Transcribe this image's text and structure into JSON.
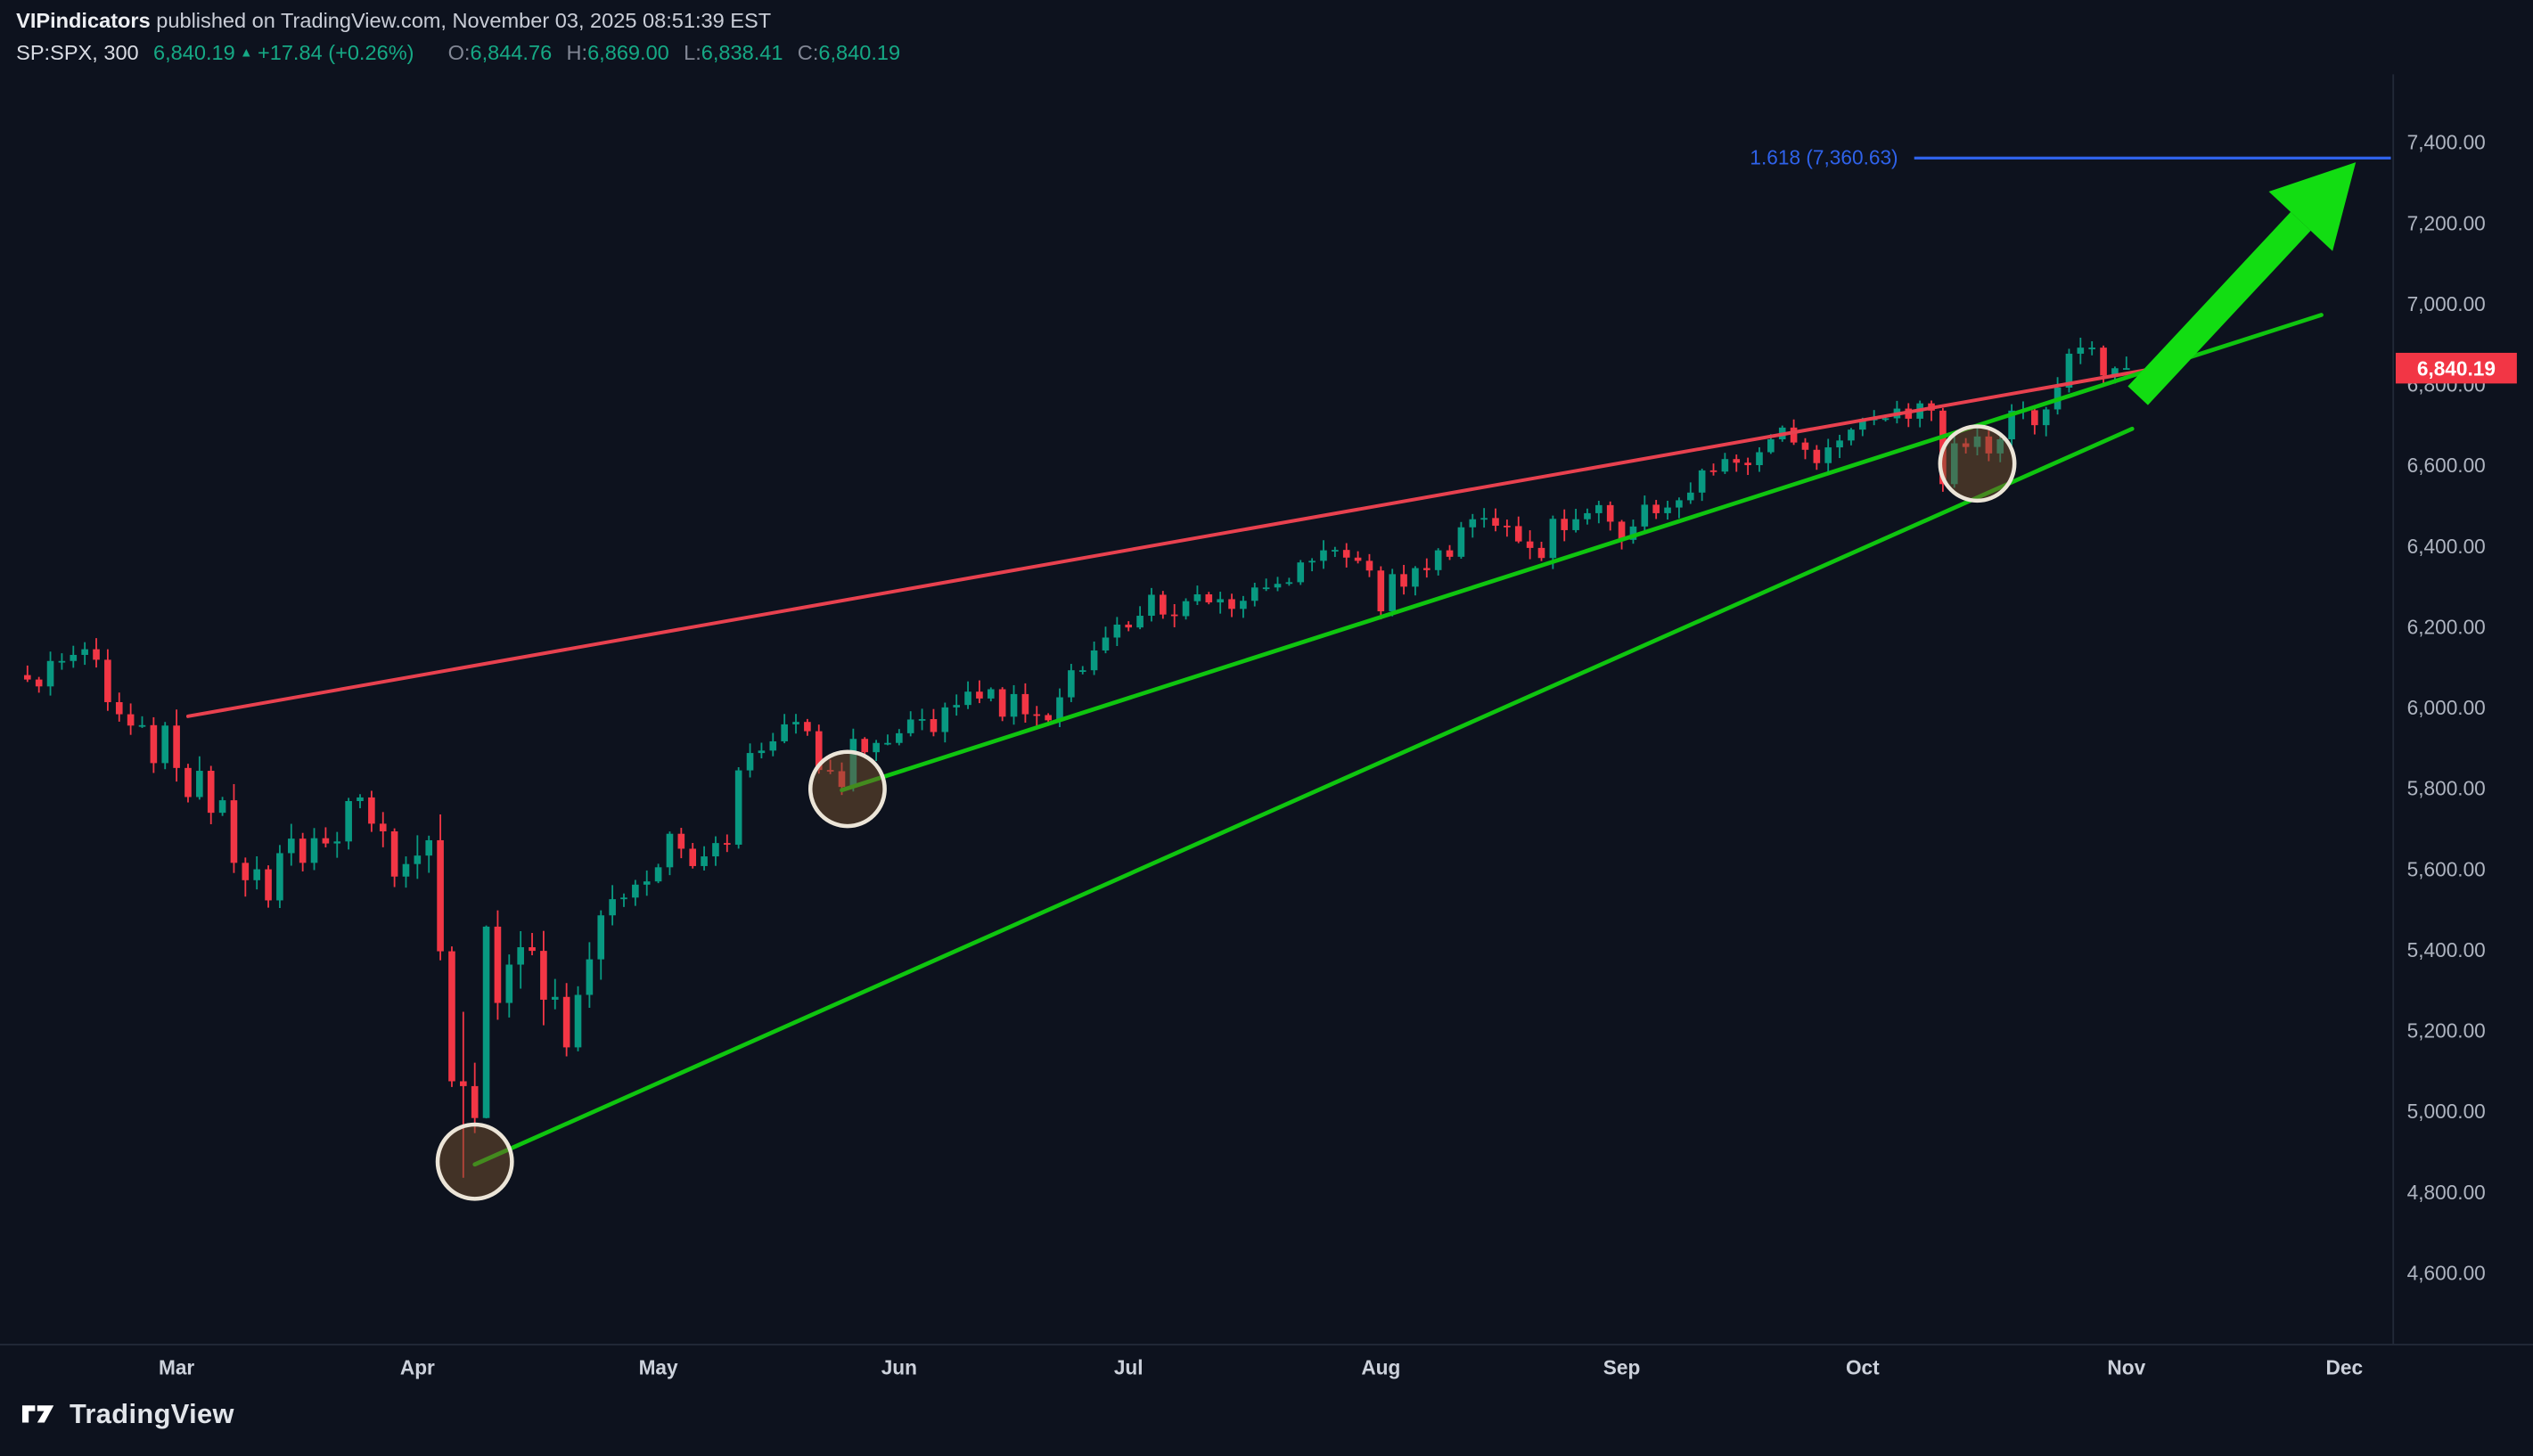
{
  "page": {
    "attribution": {
      "author": "VIPindicators",
      "suffix": " published on TradingView.com, November 03, 2025 08:51:39 EST"
    },
    "symbol_line": {
      "symbol": "SP:SPX, 300",
      "last_price": "6,840.19",
      "direction_icon": "▲",
      "change": "+17.84 (+0.26%)",
      "ohlc": [
        {
          "label": "O:",
          "value": "6,844.76"
        },
        {
          "label": "H:",
          "value": "6,869.00"
        },
        {
          "label": "L:",
          "value": "6,838.41"
        },
        {
          "label": "C:",
          "value": "6,840.19"
        }
      ]
    },
    "logo_text": "TradingView"
  },
  "chart_data": {
    "type": "candlestick",
    "symbol": "SP:SPX",
    "timeframe": "300",
    "last_price": 6840.19,
    "last_price_label": "6,840.19",
    "y_axis": {
      "ticks": [
        4600,
        4800,
        5000,
        5200,
        5400,
        5600,
        5800,
        6000,
        6200,
        6400,
        6600,
        6800,
        7000,
        7200,
        7400
      ]
    },
    "x_axis": {
      "months": [
        {
          "label": "Mar",
          "day": 13
        },
        {
          "label": "Apr",
          "day": 34
        },
        {
          "label": "May",
          "day": 55
        },
        {
          "label": "Jun",
          "day": 76
        },
        {
          "label": "Jul",
          "day": 96
        },
        {
          "label": "Aug",
          "day": 118
        },
        {
          "label": "Sep",
          "day": 139
        },
        {
          "label": "Oct",
          "day": 160
        },
        {
          "label": "Nov",
          "day": 183
        },
        {
          "label": "Dec",
          "day": 202
        }
      ]
    },
    "candles": [
      [
        "Feb 11",
        6069
      ],
      [
        "Feb 12",
        6052
      ],
      [
        "Feb 13",
        6115
      ],
      [
        "Feb 14",
        6115
      ],
      [
        "Feb 18",
        6130
      ],
      [
        "Feb 19",
        6144
      ],
      [
        "Feb 20",
        6118
      ],
      [
        "Feb 21",
        6013
      ],
      [
        "Feb 24",
        5983
      ],
      [
        "Feb 25",
        5955
      ],
      [
        "Feb 26",
        5956
      ],
      [
        "Feb 27",
        5862
      ],
      [
        "Feb 28",
        5955
      ],
      [
        "Mar 03",
        5850
      ],
      [
        "Mar 04",
        5778
      ],
      [
        "Mar 05",
        5843
      ],
      [
        "Mar 06",
        5739
      ],
      [
        "Mar 07",
        5770
      ],
      [
        "Mar 10",
        5615
      ],
      [
        "Mar 11",
        5572
      ],
      [
        "Mar 12",
        5599
      ],
      [
        "Mar 13",
        5522
      ],
      [
        "Mar 14",
        5639
      ],
      [
        "Mar 17",
        5675
      ],
      [
        "Mar 18",
        5615
      ],
      [
        "Mar 19",
        5676
      ],
      [
        "Mar 20",
        5663
      ],
      [
        "Mar 21",
        5668
      ],
      [
        "Mar 24",
        5768
      ],
      [
        "Mar 25",
        5777
      ],
      [
        "Mar 26",
        5712
      ],
      [
        "Mar 27",
        5693
      ],
      [
        "Mar 28",
        5581
      ],
      [
        "Mar 31",
        5612
      ],
      [
        "Apr 01",
        5633
      ],
      [
        "Apr 02",
        5671
      ],
      [
        "Apr 03",
        5396
      ],
      [
        "Apr 04",
        5074
      ],
      [
        "Apr 07",
        5062
      ],
      [
        "Apr 08",
        4983
      ],
      [
        "Apr 09",
        5457
      ],
      [
        "Apr 10",
        5268
      ],
      [
        "Apr 11",
        5363
      ],
      [
        "Apr 14",
        5406
      ],
      [
        "Apr 15",
        5397
      ],
      [
        "Apr 16",
        5276
      ],
      [
        "Apr 17",
        5283
      ],
      [
        "Apr 21",
        5158
      ],
      [
        "Apr 22",
        5288
      ],
      [
        "Apr 23",
        5376
      ],
      [
        "Apr 24",
        5485
      ],
      [
        "Apr 25",
        5525
      ],
      [
        "Apr 28",
        5529
      ],
      [
        "Apr 29",
        5561
      ],
      [
        "Apr 30",
        5569
      ],
      [
        "May 01",
        5604
      ],
      [
        "May 02",
        5687
      ],
      [
        "May 05",
        5650
      ],
      [
        "May 06",
        5607
      ],
      [
        "May 07",
        5631
      ],
      [
        "May 08",
        5664
      ],
      [
        "May 09",
        5660
      ],
      [
        "May 12",
        5844
      ],
      [
        "May 13",
        5887
      ],
      [
        "May 14",
        5893
      ],
      [
        "May 15",
        5916
      ],
      [
        "May 16",
        5958
      ],
      [
        "May 19",
        5964
      ],
      [
        "May 20",
        5941
      ],
      [
        "May 21",
        5845
      ],
      [
        "May 22",
        5842
      ],
      [
        "May 23",
        5803
      ],
      [
        "May 27",
        5922
      ],
      [
        "May 28",
        5889
      ],
      [
        "May 29",
        5912
      ],
      [
        "May 30",
        5912
      ],
      [
        "Jun 02",
        5936
      ],
      [
        "Jun 03",
        5970
      ],
      [
        "Jun 04",
        5971
      ],
      [
        "Jun 05",
        5939
      ],
      [
        "Jun 06",
        6000
      ],
      [
        "Jun 09",
        6006
      ],
      [
        "Jun 10",
        6039
      ],
      [
        "Jun 11",
        6022
      ],
      [
        "Jun 12",
        6045
      ],
      [
        "Jun 13",
        5977
      ],
      [
        "Jun 16",
        6033
      ],
      [
        "Jun 17",
        5983
      ],
      [
        "Jun 18",
        5981
      ],
      [
        "Jun 20",
        5968
      ],
      [
        "Jun 23",
        6025
      ],
      [
        "Jun 24",
        6092
      ],
      [
        "Jun 25",
        6092
      ],
      [
        "Jun 26",
        6141
      ],
      [
        "Jun 27",
        6173
      ],
      [
        "Jun 30",
        6205
      ],
      [
        "Jul 01",
        6198
      ],
      [
        "Jul 02",
        6227
      ],
      [
        "Jul 03",
        6279
      ],
      [
        "Jul 07",
        6230
      ],
      [
        "Jul 08",
        6226
      ],
      [
        "Jul 09",
        6263
      ],
      [
        "Jul 10",
        6280
      ],
      [
        "Jul 11",
        6260
      ],
      [
        "Jul 14",
        6268
      ],
      [
        "Jul 15",
        6244
      ],
      [
        "Jul 16",
        6264
      ],
      [
        "Jul 17",
        6297
      ],
      [
        "Jul 18",
        6297
      ],
      [
        "Jul 21",
        6306
      ],
      [
        "Jul 22",
        6310
      ],
      [
        "Jul 23",
        6359
      ],
      [
        "Jul 24",
        6363
      ],
      [
        "Jul 25",
        6389
      ],
      [
        "Jul 28",
        6390
      ],
      [
        "Jul 29",
        6371
      ],
      [
        "Jul 30",
        6363
      ],
      [
        "Jul 31",
        6339
      ],
      [
        "Aug 01",
        6238
      ],
      [
        "Aug 04",
        6330
      ],
      [
        "Aug 05",
        6299
      ],
      [
        "Aug 06",
        6345
      ],
      [
        "Aug 07",
        6340
      ],
      [
        "Aug 08",
        6389
      ],
      [
        "Aug 11",
        6373
      ],
      [
        "Aug 12",
        6446
      ],
      [
        "Aug 13",
        6466
      ],
      [
        "Aug 14",
        6469
      ],
      [
        "Aug 15",
        6450
      ],
      [
        "Aug 18",
        6449
      ],
      [
        "Aug 19",
        6411
      ],
      [
        "Aug 20",
        6395
      ],
      [
        "Aug 21",
        6370
      ],
      [
        "Aug 22",
        6467
      ],
      [
        "Aug 25",
        6439
      ],
      [
        "Aug 26",
        6466
      ],
      [
        "Aug 27",
        6481
      ],
      [
        "Aug 28",
        6501
      ],
      [
        "Aug 29",
        6460
      ],
      [
        "Sep 02",
        6415
      ],
      [
        "Sep 03",
        6448
      ],
      [
        "Sep 04",
        6502
      ],
      [
        "Sep 05",
        6481
      ],
      [
        "Sep 08",
        6495
      ],
      [
        "Sep 09",
        6513
      ],
      [
        "Sep 10",
        6532
      ],
      [
        "Sep 11",
        6587
      ],
      [
        "Sep 12",
        6584
      ],
      [
        "Sep 15",
        6615
      ],
      [
        "Sep 16",
        6606
      ],
      [
        "Sep 17",
        6600
      ],
      [
        "Sep 18",
        6632
      ],
      [
        "Sep 19",
        6664
      ],
      [
        "Sep 22",
        6693
      ],
      [
        "Sep 23",
        6656
      ],
      [
        "Sep 24",
        6638
      ],
      [
        "Sep 25",
        6605
      ],
      [
        "Sep 26",
        6644
      ],
      [
        "Sep 29",
        6661
      ],
      [
        "Sep 30",
        6688
      ],
      [
        "Oct 01",
        6711
      ],
      [
        "Oct 02",
        6715
      ],
      [
        "Oct 03",
        6716
      ],
      [
        "Oct 06",
        6740
      ],
      [
        "Oct 07",
        6715
      ],
      [
        "Oct 08",
        6753
      ],
      [
        "Oct 09",
        6735
      ],
      [
        "Oct 10",
        6553
      ],
      [
        "Oct 13",
        6654
      ],
      [
        "Oct 14",
        6645
      ],
      [
        "Oct 15",
        6671
      ],
      [
        "Oct 16",
        6629
      ],
      [
        "Oct 17",
        6664
      ],
      [
        "Oct 20",
        6735
      ],
      [
        "Oct 21",
        6736
      ],
      [
        "Oct 22",
        6699
      ],
      [
        "Oct 23",
        6738
      ],
      [
        "Oct 24",
        6792
      ],
      [
        "Oct 27",
        6876
      ],
      [
        "Oct 28",
        6891
      ],
      [
        "Oct 29",
        6891
      ],
      [
        "Oct 30",
        6822
      ],
      [
        "Oct 31",
        6840
      ],
      [
        "Nov 03",
        6840.19
      ]
    ],
    "wick_overrides": {
      "21": [
        null,
        5504
      ],
      "38": [
        5246,
        4835
      ],
      "40": [
        5460,
        4982
      ],
      "167": [
        null,
        6534
      ],
      "183": [
        6869,
        6838.41
      ]
    },
    "annotations": {
      "fib_extension": {
        "label": "1.618 (7,360.63)",
        "price": 7360.63,
        "from_day": 164.5,
        "color": "#2f62ea"
      },
      "resistance_trendline": {
        "from": {
          "day": 14,
          "price": 5978
        },
        "to": {
          "day": 186,
          "price": 6842
        },
        "color": "#e8414f"
      },
      "support_trendline_outer": {
        "from": {
          "day": 39,
          "price": 4868
        },
        "to": {
          "day": 183.5,
          "price": 6690
        },
        "color": "#0fc50f"
      },
      "support_trendline_inner": {
        "from": {
          "day": 71,
          "price": 5795
        },
        "to": {
          "day": 200,
          "price": 6972
        },
        "color": "#0fc50f"
      },
      "projection_arrow": {
        "from": {
          "day": 184,
          "price": 6772
        },
        "to": {
          "day": 203,
          "price": 7350
        },
        "color": "#12dd12"
      },
      "highlight_circles": [
        {
          "day": 39,
          "price": 4875
        },
        {
          "day": 71.5,
          "price": 5798
        },
        {
          "day": 170,
          "price": 6604
        }
      ]
    },
    "circle_style": {
      "radius": 23,
      "stroke": "#ece5d8",
      "fill": "rgba(120,82,46,0.5)"
    },
    "colors": {
      "up": "#089981",
      "down": "#f23645",
      "price_tag_bg": "#f23645",
      "trend_green": "#0fc50f",
      "arrow_green": "#12dd12",
      "fib_blue": "#2f62ea",
      "trend_red": "#e8414f",
      "background": "#0d121e",
      "header_up_text": "#16a985",
      "axis_text": "#aeb4c0"
    }
  }
}
